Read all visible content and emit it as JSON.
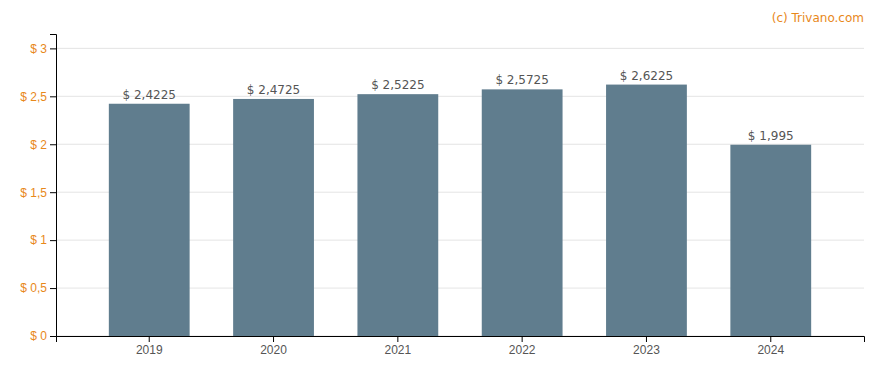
{
  "chart_data": {
    "type": "bar",
    "categories": [
      "2019",
      "2020",
      "2021",
      "2022",
      "2023",
      "2024"
    ],
    "values": [
      2.4225,
      2.4725,
      2.5225,
      2.5725,
      2.6225,
      1.995
    ],
    "value_labels": [
      "$ 2,4225",
      "$ 2,4725",
      "$ 2,5225",
      "$ 2,5725",
      "$ 2,6225",
      "$ 1,995"
    ],
    "data_labels": true,
    "color": "#607d8e",
    "ylim": [
      0,
      3.15
    ],
    "yticks": [
      {
        "value": 0,
        "label": "$ 0"
      },
      {
        "value": 0.5,
        "label": "$ 0,5"
      },
      {
        "value": 1.0,
        "label": "$ 1"
      },
      {
        "value": 1.5,
        "label": "$ 1,5"
      },
      {
        "value": 2.0,
        "label": "$ 2"
      },
      {
        "value": 2.5,
        "label": "$ 2,5"
      },
      {
        "value": 3.0,
        "label": "$ 3"
      }
    ],
    "grid": true,
    "annotations": [
      "(c) Trivano.com"
    ]
  }
}
